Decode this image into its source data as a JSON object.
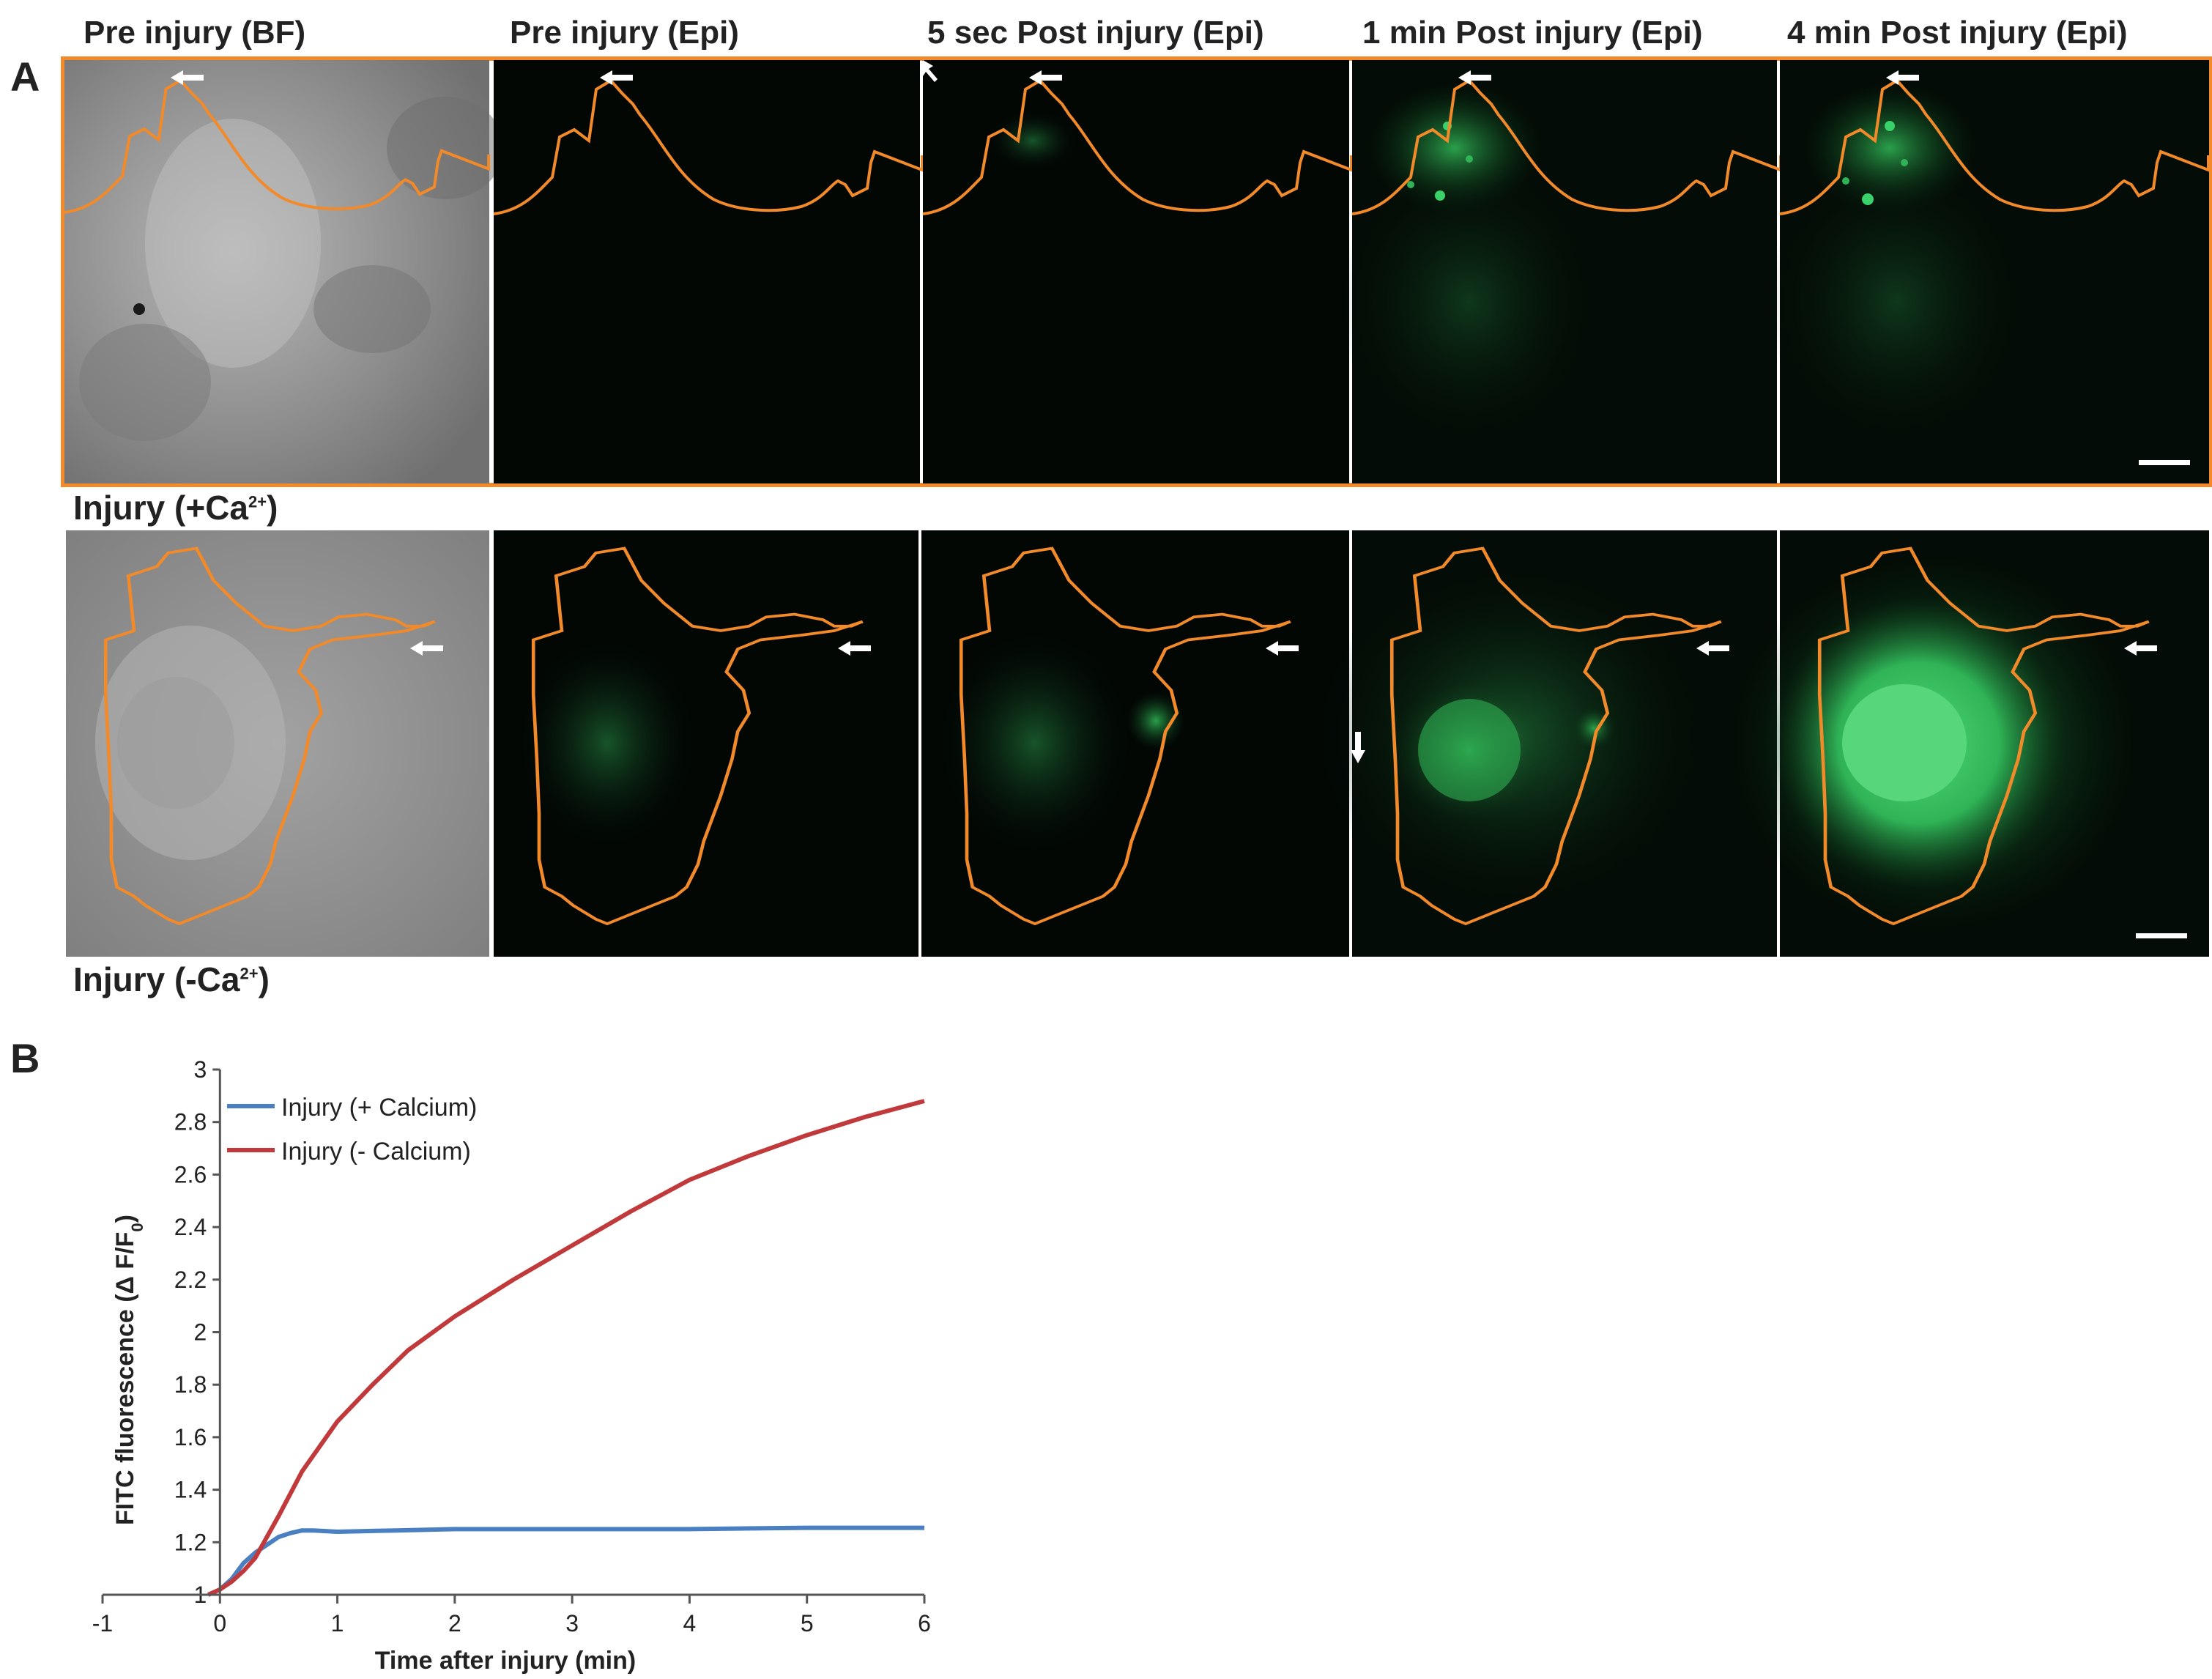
{
  "figure": {
    "panel_a_label": "A",
    "panel_b_label": "B",
    "column_titles": [
      "Pre injury (BF)",
      "Pre injury (Epi)",
      "5 sec Post injury (Epi)",
      "1 min Post injury (Epi)",
      "4 min Post injury (Epi)"
    ],
    "row1_label_main": "Injury (+Ca",
    "row1_label_sup": "2+",
    "row1_label_end": ")",
    "row2_label_main": "Injury (-Ca",
    "row2_label_sup": "2+",
    "row2_label_end": ")"
  },
  "colors": {
    "outline": "#f28a2a",
    "blue_series": "#4a7fc1",
    "red_series": "#c0393b",
    "fluorescence": "#3bd16a"
  },
  "chart_data": {
    "type": "line",
    "title": "",
    "xlabel": "Time after injury (min)",
    "ylabel_main": "FITC fluorescence (Δ F/F",
    "ylabel_sub": "0",
    "ylabel_end": ")",
    "xlim": [
      -1,
      6
    ],
    "ylim": [
      1,
      3
    ],
    "x_ticks": [
      "-1",
      "0",
      "1",
      "2",
      "3",
      "4",
      "5",
      "6"
    ],
    "y_ticks": [
      "1",
      "1.2",
      "1.4",
      "1.6",
      "1.8",
      "2",
      "2.2",
      "2.4",
      "2.6",
      "2.8",
      "3"
    ],
    "legend_position": "top-left",
    "series": [
      {
        "name": "Injury (+ Calcium)",
        "color": "#4a7fc1",
        "x": [
          -0.1,
          0,
          0.1,
          0.2,
          0.3,
          0.4,
          0.5,
          0.6,
          0.7,
          0.8,
          1.0,
          1.5,
          2,
          3,
          4,
          5,
          6
        ],
        "y": [
          1.0,
          1.02,
          1.06,
          1.12,
          1.16,
          1.19,
          1.22,
          1.235,
          1.245,
          1.245,
          1.24,
          1.245,
          1.25,
          1.25,
          1.25,
          1.255,
          1.255
        ]
      },
      {
        "name": "Injury (- Calcium)",
        "color": "#c0393b",
        "x": [
          -0.1,
          0,
          0.1,
          0.2,
          0.3,
          0.5,
          0.7,
          1.0,
          1.3,
          1.6,
          2,
          2.5,
          3,
          3.5,
          4,
          4.5,
          5,
          5.5,
          6
        ],
        "y": [
          1.0,
          1.02,
          1.05,
          1.09,
          1.14,
          1.3,
          1.47,
          1.66,
          1.8,
          1.93,
          2.06,
          2.2,
          2.33,
          2.46,
          2.58,
          2.67,
          2.75,
          2.82,
          2.88
        ]
      }
    ]
  }
}
